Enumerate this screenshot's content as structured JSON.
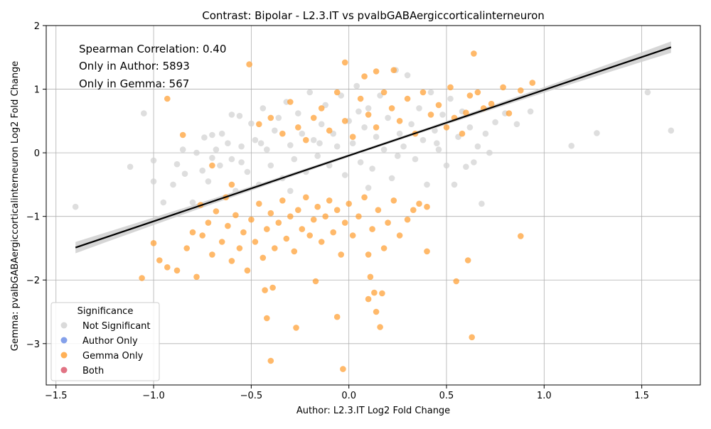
{
  "chart_data": {
    "type": "scatter",
    "title": "Contrast: Bipolar - L2.3.IT vs pvalbGABAergiccorticalinterneuron",
    "xlabel": "Author: L2.3.IT Log2 Fold Change",
    "ylabel": "Gemma: pvalbGABAergiccorticalinterneuron Log2 Fold Change",
    "xlim": [
      -1.55,
      1.8
    ],
    "ylim": [
      -3.65,
      2.0
    ],
    "xticks": [
      -1.5,
      -1.0,
      -0.5,
      0.0,
      0.5,
      1.0,
      1.5
    ],
    "xtick_labels": [
      "−1.5",
      "−1.0",
      "−0.5",
      "0.0",
      "0.5",
      "1.0",
      "1.5"
    ],
    "yticks": [
      -3,
      -2,
      -1,
      0,
      1,
      2
    ],
    "ytick_labels": [
      "−3",
      "−2",
      "−1",
      "0",
      "1",
      "2"
    ],
    "grid": true,
    "annotations": [
      "Spearman Correlation: 0.40",
      "Only in Author: 5893",
      "Only in Gemma: 567"
    ],
    "legend": {
      "title": "Significance",
      "placement": "lower-left",
      "entries": [
        {
          "label": "Not Significant",
          "color": "#d3d3d3"
        },
        {
          "label": "Author Only",
          "color": "#6f8fe6"
        },
        {
          "label": "Gemma Only",
          "color": "#ffa238"
        },
        {
          "label": "Both",
          "color": "#dc5a6e"
        }
      ]
    },
    "regression_line": {
      "x": [
        -1.4,
        1.65
      ],
      "y": [
        -1.49,
        1.66
      ],
      "color": "#000000"
    },
    "series": [
      {
        "name": "Not Significant",
        "color": "#d3d3d3",
        "points": [
          [
            -1.4,
            -0.85
          ],
          [
            -1.12,
            -0.22
          ],
          [
            -1.05,
            0.62
          ],
          [
            -1.0,
            -0.12
          ],
          [
            -1.0,
            -0.45
          ],
          [
            -0.95,
            -0.78
          ],
          [
            -0.9,
            -0.5
          ],
          [
            -0.88,
            -0.18
          ],
          [
            -0.85,
            0.05
          ],
          [
            -0.84,
            -0.33
          ],
          [
            -0.8,
            -0.78
          ],
          [
            -0.78,
            0.0
          ],
          [
            -0.75,
            -0.28
          ],
          [
            -0.74,
            0.24
          ],
          [
            -0.72,
            -0.45
          ],
          [
            -0.7,
            0.28
          ],
          [
            -0.68,
            0.05
          ],
          [
            -0.66,
            -0.2
          ],
          [
            -0.65,
            0.3
          ],
          [
            -0.62,
            0.15
          ],
          [
            -0.6,
            -0.1
          ],
          [
            -0.58,
            -0.6
          ],
          [
            -0.56,
            0.58
          ],
          [
            -0.55,
            0.1
          ],
          [
            -0.52,
            -0.3
          ],
          [
            -0.5,
            0.46
          ],
          [
            -0.48,
            0.2
          ],
          [
            -0.46,
            -0.5
          ],
          [
            -0.44,
            0.7
          ],
          [
            -0.42,
            0.05
          ],
          [
            -0.4,
            -0.2
          ],
          [
            -0.38,
            0.35
          ],
          [
            -0.36,
            0.55
          ],
          [
            -0.34,
            -0.4
          ],
          [
            -0.32,
            0.8
          ],
          [
            -0.3,
            0.12
          ],
          [
            -0.28,
            -0.1
          ],
          [
            -0.26,
            0.62
          ],
          [
            -0.24,
            0.3
          ],
          [
            -0.22,
            -0.3
          ],
          [
            -0.2,
            0.95
          ],
          [
            -0.18,
            0.2
          ],
          [
            -0.16,
            -0.05
          ],
          [
            -0.14,
            0.45
          ],
          [
            -0.12,
            0.75
          ],
          [
            -0.1,
            -0.2
          ],
          [
            -0.08,
            0.3
          ],
          [
            -0.06,
            0.1
          ],
          [
            -0.04,
            0.9
          ],
          [
            -0.02,
            -0.35
          ],
          [
            0.0,
            0.5
          ],
          [
            0.02,
            0.15
          ],
          [
            0.04,
            1.05
          ],
          [
            0.06,
            -0.15
          ],
          [
            0.08,
            0.4
          ],
          [
            0.1,
            0.7
          ],
          [
            0.12,
            -0.25
          ],
          [
            0.14,
            0.25
          ],
          [
            0.16,
            0.9
          ],
          [
            0.18,
            0.05
          ],
          [
            0.2,
            0.55
          ],
          [
            0.22,
            -0.4
          ],
          [
            0.24,
            1.3
          ],
          [
            0.26,
            0.3
          ],
          [
            0.28,
            0.1
          ],
          [
            0.3,
            1.22
          ],
          [
            0.32,
            0.45
          ],
          [
            0.34,
            -0.1
          ],
          [
            0.36,
            0.7
          ],
          [
            0.38,
            0.2
          ],
          [
            0.4,
            -0.5
          ],
          [
            0.42,
            0.95
          ],
          [
            0.44,
            0.35
          ],
          [
            0.46,
            0.05
          ],
          [
            0.48,
            0.6
          ],
          [
            0.5,
            -0.2
          ],
          [
            0.52,
            0.85
          ],
          [
            0.54,
            -0.5
          ],
          [
            0.56,
            0.25
          ],
          [
            0.58,
            0.65
          ],
          [
            0.6,
            -0.22
          ],
          [
            0.62,
            0.4
          ],
          [
            0.64,
            -0.15
          ],
          [
            0.66,
            0.1
          ],
          [
            0.68,
            -0.8
          ],
          [
            0.7,
            0.3
          ],
          [
            0.72,
            0.0
          ],
          [
            0.75,
            0.48
          ],
          [
            0.8,
            0.62
          ],
          [
            0.86,
            0.45
          ],
          [
            0.93,
            0.65
          ],
          [
            1.14,
            0.11
          ],
          [
            1.27,
            0.31
          ],
          [
            1.53,
            0.95
          ],
          [
            1.65,
            0.35
          ],
          [
            -0.6,
            0.6
          ],
          [
            -0.3,
            -0.6
          ],
          [
            0.1,
            -0.55
          ],
          [
            -0.7,
            -0.08
          ],
          [
            -0.55,
            -0.15
          ],
          [
            0.25,
            -0.05
          ],
          [
            0.45,
            0.15
          ],
          [
            -0.15,
            0.15
          ],
          [
            0.05,
            0.65
          ],
          [
            -0.45,
            0.15
          ]
        ]
      },
      {
        "name": "Author Only",
        "color": "#6f8fe6",
        "points": []
      },
      {
        "name": "Gemma Only",
        "color": "#ffa238",
        "points": [
          [
            -1.06,
            -1.97
          ],
          [
            -0.93,
            0.85
          ],
          [
            -0.85,
            0.28
          ],
          [
            -0.63,
            -0.7
          ],
          [
            -0.51,
            1.39
          ],
          [
            -0.4,
            -3.27
          ],
          [
            -0.42,
            -2.6
          ],
          [
            -0.39,
            -2.12
          ],
          [
            -0.43,
            -2.16
          ],
          [
            -0.27,
            -2.75
          ],
          [
            -0.17,
            -2.02
          ],
          [
            -0.03,
            -3.4
          ],
          [
            -0.06,
            -2.58
          ],
          [
            0.1,
            -2.3
          ],
          [
            0.11,
            -1.95
          ],
          [
            0.13,
            -2.2
          ],
          [
            0.14,
            -2.5
          ],
          [
            0.17,
            -2.21
          ],
          [
            0.16,
            -2.74
          ],
          [
            0.55,
            -2.02
          ],
          [
            0.63,
            -2.9
          ],
          [
            0.88,
            -1.31
          ],
          [
            0.61,
            -1.69
          ],
          [
            0.4,
            -1.55
          ],
          [
            -0.02,
            1.42
          ],
          [
            0.08,
            1.2
          ],
          [
            0.14,
            1.28
          ],
          [
            0.23,
            1.3
          ],
          [
            0.64,
            1.56
          ],
          [
            0.79,
            1.03
          ],
          [
            0.94,
            1.1
          ],
          [
            0.88,
            0.98
          ],
          [
            0.82,
            0.62
          ],
          [
            0.73,
            0.77
          ],
          [
            0.69,
            0.7
          ],
          [
            0.52,
            1.03
          ],
          [
            0.6,
            0.63
          ],
          [
            -1.0,
            -1.42
          ],
          [
            -0.97,
            -1.69
          ],
          [
            -0.93,
            -1.8
          ],
          [
            -0.88,
            -1.85
          ],
          [
            -0.83,
            -1.5
          ],
          [
            -0.8,
            -1.25
          ],
          [
            -0.78,
            -1.95
          ],
          [
            -0.75,
            -1.3
          ],
          [
            -0.72,
            -1.1
          ],
          [
            -0.7,
            -1.6
          ],
          [
            -0.68,
            -0.92
          ],
          [
            -0.65,
            -1.4
          ],
          [
            -0.62,
            -1.15
          ],
          [
            -0.6,
            -1.7
          ],
          [
            -0.58,
            -0.98
          ],
          [
            -0.56,
            -1.5
          ],
          [
            -0.54,
            -1.25
          ],
          [
            -0.52,
            -1.85
          ],
          [
            -0.5,
            -1.05
          ],
          [
            -0.48,
            -1.4
          ],
          [
            -0.46,
            -0.8
          ],
          [
            -0.44,
            -1.65
          ],
          [
            -0.42,
            -1.2
          ],
          [
            -0.4,
            -0.95
          ],
          [
            -0.38,
            -1.5
          ],
          [
            -0.36,
            -1.1
          ],
          [
            -0.34,
            -0.75
          ],
          [
            -0.32,
            -1.35
          ],
          [
            -0.3,
            -1.0
          ],
          [
            -0.28,
            -1.55
          ],
          [
            -0.26,
            -0.9
          ],
          [
            -0.24,
            -1.2
          ],
          [
            -0.22,
            -0.7
          ],
          [
            -0.2,
            -1.3
          ],
          [
            -0.18,
            -1.05
          ],
          [
            -0.16,
            -0.85
          ],
          [
            -0.14,
            -1.4
          ],
          [
            -0.12,
            -1.0
          ],
          [
            -0.1,
            -0.75
          ],
          [
            -0.08,
            -1.25
          ],
          [
            -0.06,
            -0.9
          ],
          [
            -0.04,
            -1.6
          ],
          [
            -0.02,
            -1.1
          ],
          [
            0.0,
            -0.8
          ],
          [
            0.02,
            -1.3
          ],
          [
            0.05,
            -1.0
          ],
          [
            0.08,
            -0.7
          ],
          [
            0.1,
            -1.6
          ],
          [
            0.12,
            -1.2
          ],
          [
            0.15,
            -0.9
          ],
          [
            0.18,
            -1.5
          ],
          [
            0.2,
            -1.1
          ],
          [
            0.23,
            -0.75
          ],
          [
            0.26,
            -1.3
          ],
          [
            0.3,
            -1.05
          ],
          [
            0.33,
            -0.9
          ],
          [
            0.36,
            -0.8
          ],
          [
            0.4,
            -0.85
          ],
          [
            -0.46,
            0.45
          ],
          [
            -0.4,
            0.55
          ],
          [
            -0.34,
            0.3
          ],
          [
            -0.3,
            0.8
          ],
          [
            -0.26,
            0.4
          ],
          [
            -0.22,
            0.2
          ],
          [
            -0.18,
            0.55
          ],
          [
            -0.14,
            0.7
          ],
          [
            -0.1,
            0.35
          ],
          [
            -0.06,
            0.95
          ],
          [
            -0.02,
            0.5
          ],
          [
            0.02,
            0.25
          ],
          [
            0.06,
            0.85
          ],
          [
            0.1,
            0.6
          ],
          [
            0.14,
            0.4
          ],
          [
            0.18,
            0.95
          ],
          [
            0.22,
            0.7
          ],
          [
            0.26,
            0.5
          ],
          [
            0.3,
            0.85
          ],
          [
            0.34,
            0.3
          ],
          [
            0.38,
            0.95
          ],
          [
            0.42,
            0.6
          ],
          [
            0.46,
            0.75
          ],
          [
            0.5,
            0.4
          ],
          [
            0.54,
            0.55
          ],
          [
            0.58,
            0.3
          ],
          [
            -0.6,
            -0.5
          ],
          [
            -0.7,
            -0.2
          ],
          [
            -0.76,
            -0.82
          ],
          [
            0.62,
            0.9
          ],
          [
            0.66,
            0.95
          ]
        ]
      },
      {
        "name": "Both",
        "color": "#dc5a6e",
        "points": []
      }
    ]
  }
}
